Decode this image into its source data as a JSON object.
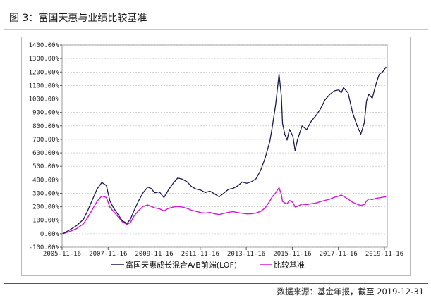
{
  "header": {
    "title": "图 3：富国天惠与业绩比较基准"
  },
  "footer": {
    "source": "数据来源：基金年报，截至 2019-12-31"
  },
  "chart_data": {
    "type": "line",
    "ylim": [
      -100,
      1400
    ],
    "y_ticks": [
      "-100.00%",
      "0.00%",
      "100.00%",
      "200.00%",
      "300.00%",
      "400.00%",
      "500.00%",
      "600.00%",
      "700.00%",
      "800.00%",
      "900.00%",
      "1000.00%",
      "1100.00%",
      "1200.00%",
      "1300.00%",
      "1400.00%"
    ],
    "y_tick_values": [
      -100,
      0,
      100,
      200,
      300,
      400,
      500,
      600,
      700,
      800,
      900,
      1000,
      1100,
      1200,
      1300,
      1400
    ],
    "x_ticks": [
      "2005-11-16",
      "2007-11-16",
      "2009-11-16",
      "2011-11-16",
      "2013-11-16",
      "2015-11-16",
      "2017-11-16",
      "2019-11-16"
    ],
    "x_tick_years": [
      2005.876,
      2007.876,
      2009.876,
      2011.876,
      2013.876,
      2015.876,
      2017.876,
      2019.876
    ],
    "xlim": [
      2005.876,
      2020.0
    ],
    "series": [
      {
        "name": "富国天惠成长混合A/B前端(LOF)",
        "color": "#1a1a4e",
        "x": [
          2005.9,
          2006.2,
          2006.5,
          2006.8,
          2007.0,
          2007.2,
          2007.4,
          2007.6,
          2007.8,
          2007.95,
          2008.1,
          2008.3,
          2008.5,
          2008.7,
          2008.85,
          2009.0,
          2009.2,
          2009.4,
          2009.6,
          2009.75,
          2009.9,
          2010.1,
          2010.3,
          2010.5,
          2010.7,
          2010.9,
          2011.1,
          2011.3,
          2011.5,
          2011.7,
          2011.9,
          2012.1,
          2012.3,
          2012.5,
          2012.7,
          2012.9,
          2013.1,
          2013.3,
          2013.5,
          2013.7,
          2013.9,
          2014.1,
          2014.3,
          2014.5,
          2014.7,
          2014.9,
          2015.0,
          2015.15,
          2015.3,
          2015.4,
          2015.45,
          2015.55,
          2015.65,
          2015.75,
          2015.9,
          2016.0,
          2016.1,
          2016.3,
          2016.5,
          2016.7,
          2016.9,
          2017.1,
          2017.3,
          2017.5,
          2017.7,
          2017.9,
          2018.0,
          2018.1,
          2018.3,
          2018.5,
          2018.7,
          2018.85,
          2019.0,
          2019.1,
          2019.2,
          2019.35,
          2019.5,
          2019.65,
          2019.8,
          2019.95
        ],
        "values": [
          0,
          25,
          55,
          100,
          170,
          250,
          330,
          380,
          360,
          250,
          200,
          150,
          100,
          80,
          110,
          170,
          240,
          300,
          340,
          330,
          300,
          310,
          270,
          330,
          380,
          420,
          410,
          390,
          350,
          330,
          320,
          300,
          310,
          290,
          270,
          300,
          330,
          340,
          360,
          390,
          380,
          390,
          410,
          470,
          560,
          680,
          780,
          950,
          1180,
          1020,
          820,
          740,
          700,
          780,
          730,
          620,
          700,
          800,
          770,
          830,
          870,
          920,
          990,
          1030,
          1060,
          1070,
          1050,
          1090,
          1050,
          900,
          800,
          740,
          820,
          980,
          1030,
          1000,
          1100,
          1180,
          1200,
          1240
        ]
      },
      {
        "name": "比较基准",
        "color": "#d814d8",
        "x": [
          2005.9,
          2006.2,
          2006.5,
          2006.8,
          2007.0,
          2007.2,
          2007.4,
          2007.6,
          2007.8,
          2007.95,
          2008.1,
          2008.3,
          2008.5,
          2008.7,
          2008.85,
          2009.0,
          2009.2,
          2009.4,
          2009.6,
          2009.75,
          2009.9,
          2010.1,
          2010.3,
          2010.5,
          2010.7,
          2010.9,
          2011.1,
          2011.3,
          2011.5,
          2011.7,
          2011.9,
          2012.1,
          2012.3,
          2012.5,
          2012.7,
          2012.9,
          2013.1,
          2013.3,
          2013.5,
          2013.7,
          2013.9,
          2014.1,
          2014.3,
          2014.5,
          2014.7,
          2014.9,
          2015.0,
          2015.15,
          2015.3,
          2015.4,
          2015.45,
          2015.55,
          2015.65,
          2015.75,
          2015.9,
          2016.0,
          2016.1,
          2016.3,
          2016.5,
          2016.7,
          2016.9,
          2017.1,
          2017.3,
          2017.5,
          2017.7,
          2017.9,
          2018.0,
          2018.1,
          2018.3,
          2018.5,
          2018.7,
          2018.85,
          2019.0,
          2019.1,
          2019.2,
          2019.35,
          2019.5,
          2019.65,
          2019.8,
          2019.95
        ],
        "values": [
          0,
          15,
          35,
          70,
          120,
          180,
          240,
          280,
          270,
          200,
          170,
          130,
          90,
          70,
          85,
          130,
          170,
          200,
          210,
          200,
          190,
          185,
          170,
          190,
          200,
          205,
          200,
          190,
          175,
          165,
          155,
          150,
          155,
          145,
          140,
          150,
          160,
          165,
          160,
          155,
          150,
          150,
          155,
          165,
          190,
          240,
          270,
          300,
          340,
          290,
          240,
          230,
          225,
          250,
          235,
          200,
          205,
          220,
          215,
          220,
          225,
          235,
          245,
          255,
          270,
          280,
          290,
          280,
          260,
          235,
          220,
          210,
          215,
          240,
          255,
          250,
          260,
          265,
          270,
          275
        ]
      }
    ]
  }
}
